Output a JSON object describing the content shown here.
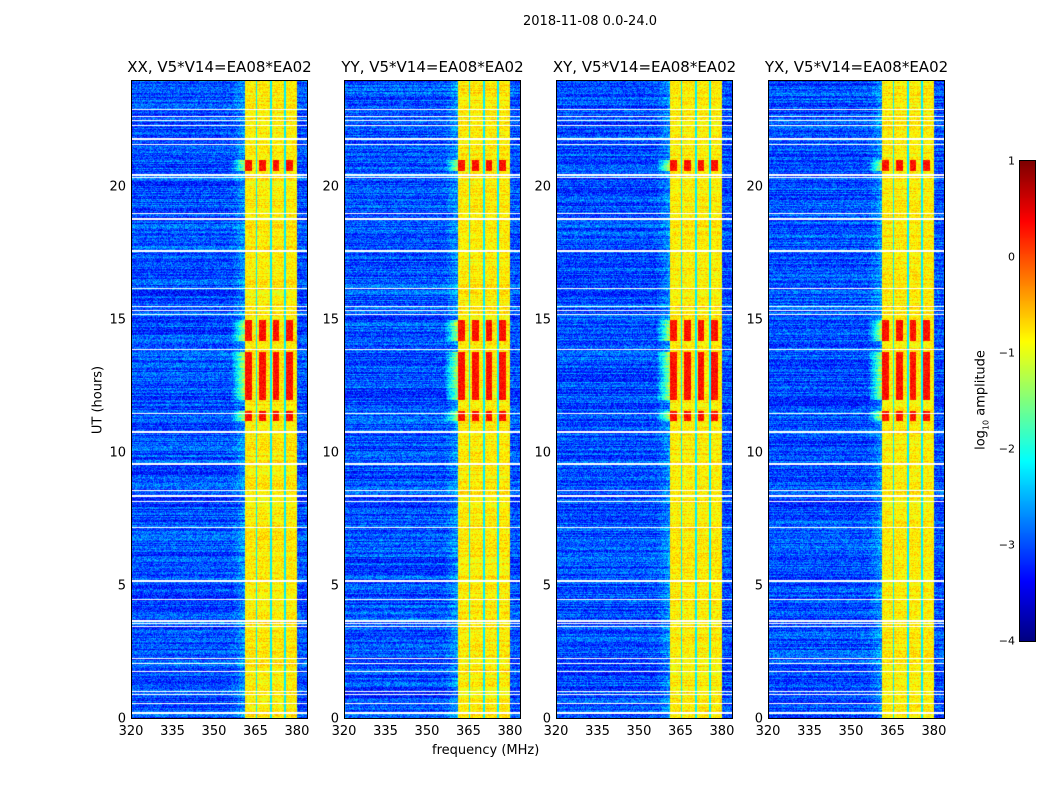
{
  "chart_data": {
    "type": "heatmap",
    "title": "2018-11-08 0.0-24.0",
    "xlabel": "frequency (MHz)",
    "ylabel": "UT (hours)",
    "xlim": [
      320,
      384
    ],
    "ylim": [
      0,
      24
    ],
    "xticks": [
      "320",
      "335",
      "350",
      "365",
      "380"
    ],
    "xtick_values": [
      320,
      335,
      350,
      365,
      380
    ],
    "yticks": [
      "0",
      "5",
      "10",
      "15",
      "20"
    ],
    "ytick_values": [
      0,
      5,
      10,
      15,
      20
    ],
    "panels": [
      {
        "title": "XX, V5*V14=EA08*EA02"
      },
      {
        "title": "YY, V5*V14=EA08*EA02"
      },
      {
        "title": "XY, V5*V14=EA08*EA02"
      },
      {
        "title": "YX, V5*V14=EA08*EA02"
      }
    ],
    "colorbar": {
      "label": "log10 amplitude",
      "label_main": "log",
      "label_sub": "10",
      "label_rest": " amplitude",
      "range": [
        -4,
        1
      ],
      "ticks": [
        "−4",
        "−3",
        "−2",
        "−1",
        "0",
        "1"
      ],
      "tick_values": [
        -4,
        -3,
        -2,
        -1,
        0,
        1
      ],
      "colormap": "jet"
    },
    "features": {
      "background_level": -3,
      "rfi_band_mhz": [
        361,
        380
      ],
      "rfi_band_level": -0.8,
      "strong_rfi_hours": [
        [
          11.2,
          11.6
        ],
        [
          12.0,
          13.8
        ],
        [
          14.2,
          15.0
        ],
        [
          20.6,
          21.0
        ]
      ],
      "strong_rfi_level": 0.3,
      "flagged_hours": [
        0.25,
        0.6,
        0.95,
        1.05,
        1.8,
        2.1,
        2.3,
        3.5,
        3.6,
        3.7,
        4.5,
        5.2,
        7.2,
        8.2,
        8.4,
        8.6,
        9.6,
        10.8,
        11.5,
        13.9,
        15.2,
        15.35,
        15.5,
        16.2,
        17.6,
        18.8,
        19.0,
        20.35,
        20.45,
        21.6,
        21.8,
        22.3,
        22.5,
        22.65,
        22.9
      ]
    }
  }
}
